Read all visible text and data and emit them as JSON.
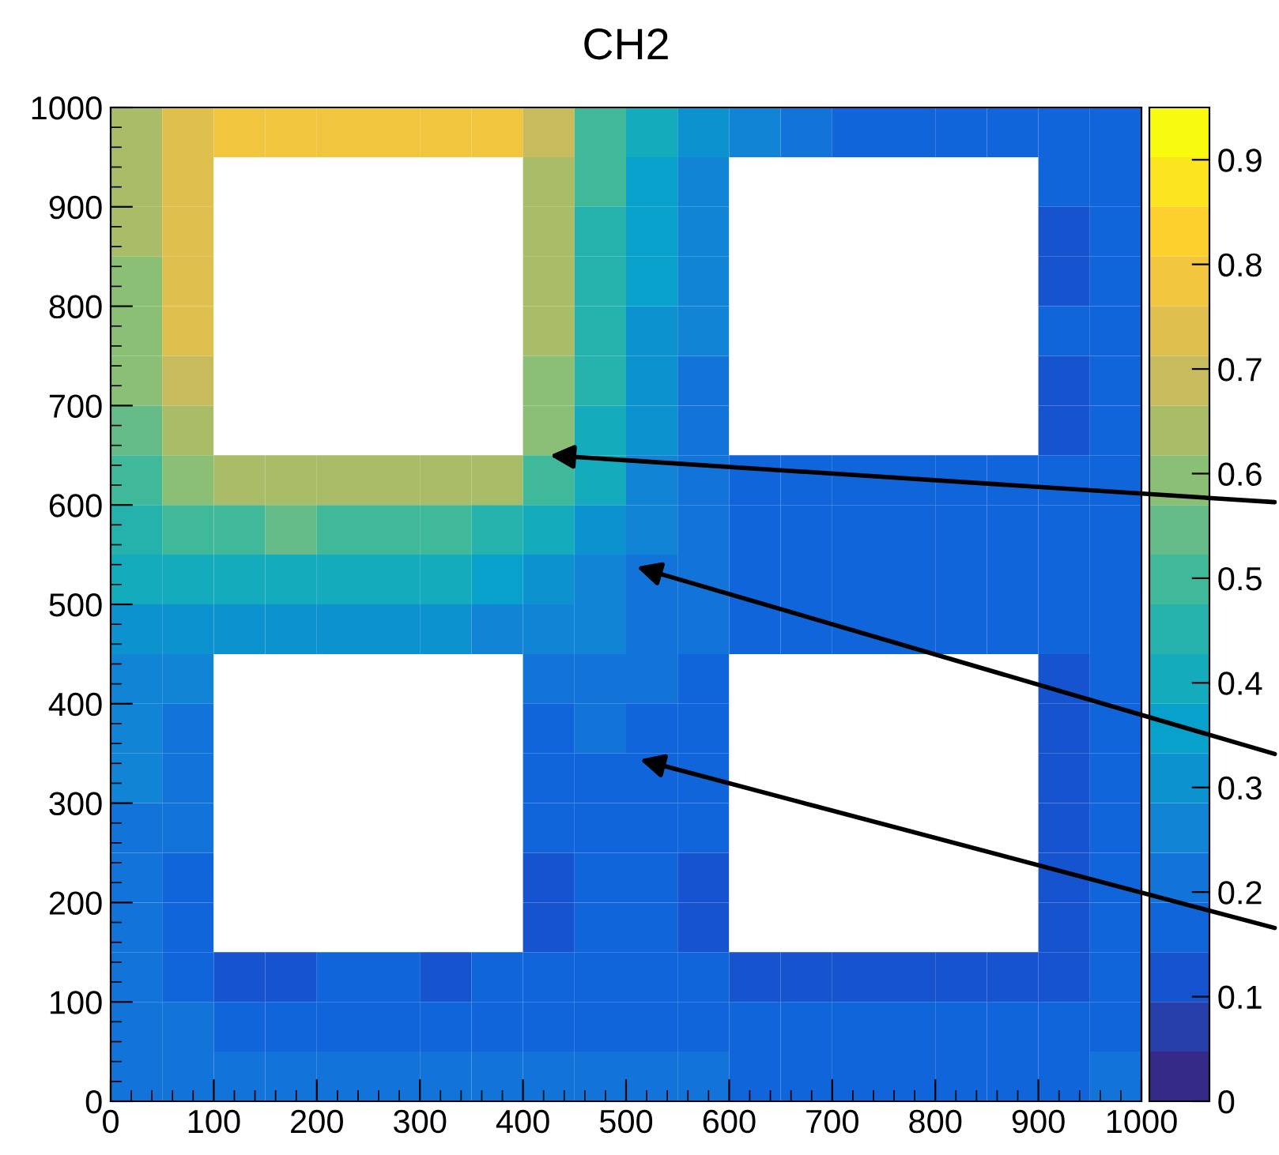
{
  "chart_data": {
    "type": "heatmap",
    "title": "CH2",
    "xlim": [
      0,
      1000
    ],
    "ylim": [
      0,
      1000
    ],
    "xticks": [
      0,
      100,
      200,
      300,
      400,
      500,
      600,
      700,
      800,
      900,
      1000
    ],
    "yticks": [
      0,
      100,
      200,
      300,
      400,
      500,
      600,
      700,
      800,
      900,
      1000
    ],
    "clim": [
      0,
      0.95
    ],
    "cticks": [
      0,
      0.1,
      0.2,
      0.3,
      0.4,
      0.5,
      0.6,
      0.7,
      0.8,
      0.9
    ],
    "grid": false,
    "cells": [
      [
        0.62,
        0.72,
        0.8,
        0.8,
        0.8,
        0.8,
        0.8,
        0.8,
        0.7,
        0.5,
        0.38,
        0.3,
        0.24,
        0.2,
        0.18,
        0.18,
        0.18,
        0.18,
        0.17,
        0.17
      ],
      [
        0.62,
        0.74,
        null,
        null,
        null,
        null,
        null,
        null,
        0.66,
        0.48,
        0.36,
        0.28,
        null,
        null,
        null,
        null,
        null,
        null,
        0.15,
        0.17
      ],
      [
        0.62,
        0.74,
        null,
        null,
        null,
        null,
        null,
        null,
        0.64,
        0.47,
        0.35,
        0.27,
        null,
        null,
        null,
        null,
        null,
        null,
        0.14,
        0.17
      ],
      [
        0.61,
        0.73,
        null,
        null,
        null,
        null,
        null,
        null,
        0.63,
        0.46,
        0.34,
        0.26,
        null,
        null,
        null,
        null,
        null,
        null,
        0.14,
        0.17
      ],
      [
        0.6,
        0.72,
        null,
        null,
        null,
        null,
        null,
        null,
        0.62,
        0.45,
        0.33,
        0.25,
        null,
        null,
        null,
        null,
        null,
        null,
        0.15,
        0.17
      ],
      [
        0.58,
        0.7,
        null,
        null,
        null,
        null,
        null,
        null,
        0.6,
        0.43,
        0.31,
        0.23,
        null,
        null,
        null,
        null,
        null,
        null,
        0.13,
        0.17
      ],
      [
        0.55,
        0.66,
        null,
        null,
        null,
        null,
        null,
        null,
        0.58,
        0.4,
        0.29,
        0.22,
        null,
        null,
        null,
        null,
        null,
        null,
        0.13,
        0.17
      ],
      [
        0.5,
        0.58,
        0.65,
        0.66,
        0.64,
        0.63,
        0.63,
        0.62,
        0.52,
        0.38,
        0.28,
        0.21,
        0.18,
        0.17,
        0.17,
        0.17,
        0.17,
        0.17,
        0.16,
        0.17
      ],
      [
        0.44,
        0.48,
        0.52,
        0.53,
        0.52,
        0.51,
        0.5,
        0.47,
        0.42,
        0.33,
        0.26,
        0.2,
        0.18,
        0.18,
        0.18,
        0.18,
        0.18,
        0.18,
        0.18,
        0.18
      ],
      [
        0.38,
        0.4,
        0.42,
        0.42,
        0.42,
        0.41,
        0.4,
        0.37,
        0.33,
        0.28,
        0.23,
        0.2,
        0.18,
        0.18,
        0.18,
        0.18,
        0.18,
        0.18,
        0.18,
        0.18
      ],
      [
        0.32,
        0.32,
        0.32,
        0.31,
        0.31,
        0.31,
        0.3,
        0.28,
        0.26,
        0.24,
        0.21,
        0.19,
        0.17,
        0.17,
        0.17,
        0.17,
        0.17,
        0.17,
        0.17,
        0.18
      ],
      [
        0.27,
        0.24,
        null,
        null,
        null,
        null,
        null,
        null,
        0.19,
        0.2,
        0.19,
        0.17,
        null,
        null,
        null,
        null,
        null,
        null,
        0.14,
        0.17
      ],
      [
        0.25,
        0.22,
        null,
        null,
        null,
        null,
        null,
        null,
        0.18,
        0.19,
        0.18,
        0.17,
        null,
        null,
        null,
        null,
        null,
        null,
        0.14,
        0.17
      ],
      [
        0.24,
        0.21,
        null,
        null,
        null,
        null,
        null,
        null,
        0.17,
        0.18,
        0.18,
        0.16,
        null,
        null,
        null,
        null,
        null,
        null,
        0.14,
        0.17
      ],
      [
        0.23,
        0.2,
        null,
        null,
        null,
        null,
        null,
        null,
        0.16,
        0.18,
        0.18,
        0.15,
        null,
        null,
        null,
        null,
        null,
        null,
        0.13,
        0.17
      ],
      [
        0.22,
        0.17,
        null,
        null,
        null,
        null,
        null,
        null,
        0.13,
        0.17,
        0.17,
        0.13,
        null,
        null,
        null,
        null,
        null,
        null,
        0.12,
        0.16
      ],
      [
        0.21,
        0.15,
        null,
        null,
        null,
        null,
        null,
        null,
        0.13,
        0.17,
        0.17,
        0.12,
        null,
        null,
        null,
        null,
        null,
        null,
        0.12,
        0.16
      ],
      [
        0.21,
        0.18,
        0.14,
        0.14,
        0.17,
        0.15,
        0.14,
        0.16,
        0.18,
        0.18,
        0.18,
        0.15,
        0.12,
        0.12,
        0.13,
        0.13,
        0.12,
        0.12,
        0.13,
        0.17
      ],
      [
        0.2,
        0.19,
        0.18,
        0.18,
        0.18,
        0.18,
        0.18,
        0.18,
        0.18,
        0.18,
        0.18,
        0.17,
        0.16,
        0.15,
        0.15,
        0.15,
        0.15,
        0.16,
        0.17,
        0.18
      ],
      [
        0.2,
        0.19,
        0.19,
        0.19,
        0.19,
        0.19,
        0.19,
        0.19,
        0.19,
        0.19,
        0.19,
        0.19,
        0.18,
        0.18,
        0.18,
        0.18,
        0.18,
        0.18,
        0.18,
        0.19
      ]
    ]
  }
}
